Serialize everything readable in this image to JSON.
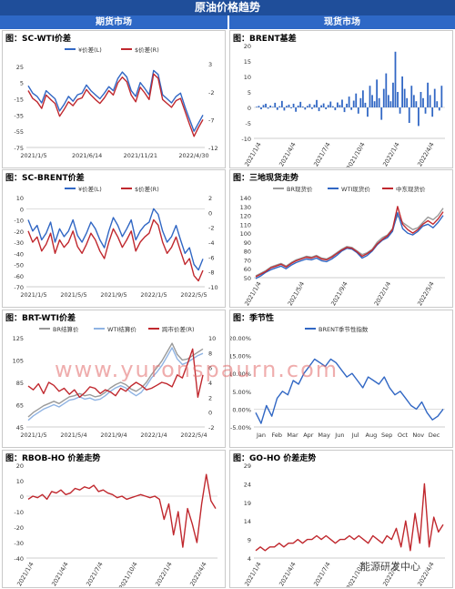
{
  "header": {
    "title": "原油价格趋势",
    "left": "期货市场",
    "right": "现货市场"
  },
  "watermark": "www.yuronspaurn.com",
  "brand": "能源研发中心",
  "chart_data": [
    {
      "id": "c1",
      "type": "line",
      "title": "图：SC-WTI价差",
      "xticks": [
        "2021/1/5",
        "2021/6/14",
        "2021/11/21",
        "2022/4/30"
      ],
      "ylim": [
        -75,
        35
      ],
      "yticks": [
        25,
        5,
        -15,
        -35,
        -55,
        -75
      ],
      "y2lim": [
        -12,
        4
      ],
      "y2ticks": [
        3,
        -2,
        -7,
        -12
      ],
      "legend": [
        "¥价差(L)",
        "$价差(R)"
      ],
      "series": [
        {
          "name": "¥价差(L)",
          "axis": "left",
          "color": "#3167c4",
          "values": [
            1,
            -8,
            -12,
            -20,
            -5,
            -10,
            -15,
            -30,
            -22,
            -12,
            -18,
            -10,
            -8,
            2,
            -5,
            -10,
            -15,
            -8,
            0,
            -5,
            10,
            18,
            12,
            -5,
            -12,
            5,
            -2,
            -10,
            20,
            15,
            -10,
            -15,
            -20,
            -12,
            -8,
            -25,
            -40,
            -55,
            -45,
            -35
          ]
        },
        {
          "name": "$价差(R)",
          "axis": "right",
          "color": "#c0282e",
          "values": [
            -1.8,
            -3.2,
            -3.8,
            -5,
            -2.6,
            -3.4,
            -4.1,
            -6.4,
            -5.2,
            -3.8,
            -4.5,
            -3.4,
            -3.1,
            -1.6,
            -2.6,
            -3.4,
            -4.1,
            -3.1,
            -1.8,
            -2.6,
            -0.4,
            0.6,
            -0.2,
            -2.6,
            -3.8,
            -1.2,
            -2.2,
            -3.4,
            1.2,
            0.4,
            -3.4,
            -4.1,
            -4.8,
            -3.6,
            -3.2,
            -5.5,
            -7.8,
            -10,
            -8.4,
            -7
          ]
        }
      ]
    },
    {
      "id": "c2",
      "type": "bar",
      "title": "图：BRENT基差",
      "xticks": [
        "2021/1/4",
        "2021/4/4",
        "2021/7/4",
        "2021/10/4",
        "2022/1/4",
        "2022/4/4"
      ],
      "ylim": [
        -10,
        20
      ],
      "yticks": [
        20,
        15,
        10,
        5,
        0,
        -5,
        -10
      ],
      "series": [
        {
          "name": "",
          "color": "#3167c4",
          "values": [
            0.2,
            0.5,
            -0.6,
            0.8,
            1.2,
            -0.4,
            0.6,
            0.2,
            1.5,
            -0.8,
            0.4,
            2.1,
            -1,
            0.5,
            0.9,
            -0.3,
            1.2,
            -1.4,
            0.6,
            1.8,
            0.3,
            -0.7,
            0.5,
            1.1,
            -0.5,
            0.9,
            2.4,
            -1.2,
            0.7,
            1.3,
            -0.6,
            0.8,
            1.9,
            0.4,
            -0.9,
            1.6,
            0.8,
            2.5,
            -1.5,
            1.2,
            3.5,
            -0.8,
            2.2,
            4.5,
            -2,
            3,
            5.5,
            1.5,
            -3,
            7,
            4,
            2,
            9,
            3,
            -4,
            6,
            11,
            4,
            2,
            8,
            18,
            5,
            -2,
            10,
            6,
            3,
            -5,
            7,
            4,
            2,
            -6,
            5,
            3,
            -2,
            8,
            4,
            -3,
            6,
            2,
            -1,
            7
          ]
        }
      ]
    },
    {
      "id": "c3",
      "type": "line",
      "title": "图：SC-BRENT价差",
      "xticks": [
        "2021/1/5",
        "2021/5/5",
        "2021/9/5",
        "2022/1/5",
        "2022/5/5"
      ],
      "ylim": [
        -70,
        10
      ],
      "yticks": [
        10,
        0,
        -10,
        -20,
        -30,
        -40,
        -50,
        -60,
        -70
      ],
      "y2lim": [
        -10,
        2
      ],
      "y2ticks": [
        2,
        0,
        -2,
        -4,
        -6,
        -8,
        -10
      ],
      "legend": [
        "¥价差(L)",
        "$价差(R)"
      ],
      "series": [
        {
          "name": "¥价差(L)",
          "axis": "left",
          "color": "#3167c4",
          "values": [
            -10,
            -20,
            -15,
            -28,
            -22,
            -12,
            -30,
            -18,
            -25,
            -20,
            -10,
            -24,
            -30,
            -22,
            -12,
            -18,
            -28,
            -35,
            -20,
            -8,
            -15,
            -25,
            -18,
            -10,
            -28,
            -20,
            -15,
            -12,
            0,
            -5,
            -20,
            -30,
            -25,
            -15,
            -28,
            -40,
            -35,
            -50,
            -55,
            -45
          ]
        },
        {
          "name": "$价差(R)",
          "axis": "right",
          "color": "#c0282e",
          "values": [
            -2.5,
            -4,
            -3.3,
            -5.2,
            -4.3,
            -2.8,
            -5.5,
            -3.7,
            -4.7,
            -4,
            -2.5,
            -4.6,
            -5.5,
            -4.3,
            -2.8,
            -3.7,
            -5.2,
            -6.2,
            -4,
            -2.2,
            -3.3,
            -4.7,
            -3.7,
            -2.5,
            -5.2,
            -4,
            -3.3,
            -2.8,
            -1,
            -1.7,
            -4,
            -5.5,
            -4.7,
            -3.3,
            -5.2,
            -7,
            -6.2,
            -8.5,
            -9.2,
            -7.8
          ]
        }
      ]
    },
    {
      "id": "c4",
      "type": "line",
      "title": "图：三地现货走势",
      "xticks": [
        "2021/1/4",
        "2021/5/4",
        "2021/9/4",
        "2022/1/4",
        "2022/5/4"
      ],
      "ylim": [
        50,
        140
      ],
      "yticks": [
        140,
        130,
        120,
        110,
        100,
        90,
        80,
        70,
        60,
        50
      ],
      "legend": [
        "BR现货价",
        "WTI现货价",
        "中东现货价"
      ],
      "series": [
        {
          "name": "BR现货价",
          "color": "#9a9a9a",
          "values": [
            52,
            55,
            58,
            62,
            64,
            66,
            63,
            67,
            70,
            72,
            74,
            73,
            75,
            72,
            71,
            74,
            78,
            82,
            85,
            84,
            80,
            76,
            78,
            82,
            90,
            95,
            98,
            105,
            120,
            112,
            108,
            104,
            106,
            112,
            118,
            115,
            120,
            128
          ]
        },
        {
          "name": "WTI现货价",
          "color": "#3167c4",
          "values": [
            49,
            52,
            56,
            59,
            61,
            63,
            60,
            64,
            67,
            69,
            71,
            70,
            72,
            69,
            68,
            71,
            75,
            80,
            83,
            82,
            78,
            72,
            75,
            80,
            87,
            92,
            95,
            102,
            123,
            105,
            100,
            98,
            102,
            108,
            110,
            106,
            112,
            120
          ]
        },
        {
          "name": "中东现货价",
          "color": "#c0282e",
          "values": [
            51,
            54,
            57,
            61,
            63,
            65,
            62,
            66,
            69,
            71,
            73,
            72,
            74,
            71,
            70,
            73,
            77,
            81,
            84,
            83,
            79,
            74,
            77,
            81,
            88,
            93,
            97,
            104,
            130,
            110,
            104,
            100,
            104,
            110,
            114,
            110,
            116,
            124
          ]
        }
      ]
    },
    {
      "id": "c5",
      "type": "line",
      "title": "图：BRT-WTI价差",
      "xticks": [
        "2021/1/5",
        "2021/5/4",
        "2021/9/4",
        "2022/1/4",
        "2022/5/4"
      ],
      "ylim": [
        45,
        125
      ],
      "yticks": [
        125,
        105,
        85,
        65,
        45
      ],
      "y2lim": [
        -2,
        10
      ],
      "y2ticks": [
        10,
        8,
        6,
        4,
        2,
        0,
        -2
      ],
      "legend": [
        "BR结算价",
        "WTI结算价",
        "跨市价差(R)"
      ],
      "series": [
        {
          "name": "BR结算价",
          "axis": "left",
          "color": "#9a9a9a",
          "values": [
            54,
            58,
            61,
            64,
            66,
            68,
            66,
            69,
            72,
            73,
            75,
            73,
            74,
            72,
            73,
            76,
            80,
            83,
            85,
            83,
            79,
            77,
            80,
            85,
            92,
            98,
            104,
            112,
            120,
            110,
            105,
            106,
            109,
            112,
            115
          ]
        },
        {
          "name": "WTI结算价",
          "axis": "left",
          "color": "#8fb3e3",
          "values": [
            51,
            55,
            58,
            61,
            63,
            65,
            63,
            66,
            69,
            70,
            72,
            70,
            71,
            69,
            70,
            73,
            77,
            80,
            82,
            80,
            76,
            73,
            76,
            82,
            89,
            94,
            100,
            108,
            116,
            106,
            101,
            103,
            106,
            109,
            111
          ]
        },
        {
          "name": "跨市价差(R)",
          "axis": "right",
          "color": "#c0282e",
          "values": [
            3.5,
            3,
            3.8,
            2.5,
            4,
            3.6,
            2.8,
            3.2,
            2.4,
            3,
            2,
            2.6,
            3.4,
            3.2,
            2.5,
            3,
            2.7,
            2.2,
            3.2,
            2.8,
            3.5,
            4,
            3.6,
            3,
            3.2,
            3.6,
            4,
            3.8,
            3.4,
            5,
            4.6,
            6.5,
            8.5,
            2,
            5
          ]
        }
      ]
    },
    {
      "id": "c6",
      "type": "line",
      "title": "图：季节性",
      "xticks": [
        "Jan",
        "Feb",
        "Mar",
        "Apr",
        "May",
        "Jun",
        "Jul",
        "Aug",
        "Sep",
        "Oct",
        "Nov",
        "Dec"
      ],
      "ylim": [
        -5,
        20
      ],
      "yticks": [
        "20.00%",
        "15.00%",
        "10.00%",
        "5.00%",
        "0.00%",
        "-5.00%"
      ],
      "legend": [
        "BRENT季节性指数"
      ],
      "series": [
        {
          "name": "BRENT季节性指数",
          "color": "#3167c4",
          "values": [
            -1,
            -4,
            1,
            -2,
            3,
            5,
            4,
            8,
            7,
            10,
            12,
            14,
            13,
            12,
            14,
            13,
            11,
            9,
            10,
            8,
            6,
            9,
            8,
            7,
            9,
            6,
            4,
            5,
            3,
            1,
            0,
            2,
            -1,
            -3,
            -2,
            0
          ]
        }
      ]
    },
    {
      "id": "c7",
      "type": "line",
      "title": "图：RBOB-HO 价差走势",
      "xticks": [
        "2021/1/4",
        "2021/4/4",
        "2021/7/4",
        "2021/10/4",
        "2022/1/4",
        "2022/4/4"
      ],
      "ylim": [
        -40,
        20
      ],
      "yticks": [
        20,
        10,
        0,
        -10,
        -20,
        -30,
        -40
      ],
      "series": [
        {
          "name": "",
          "color": "#c0282e",
          "values": [
            -2,
            0,
            -1,
            1,
            -2,
            3,
            2,
            4,
            1,
            2,
            5,
            4,
            6,
            5,
            7,
            3,
            4,
            2,
            1,
            -1,
            0,
            -2,
            -1,
            0,
            1,
            0,
            -1,
            0,
            -2,
            -15,
            -5,
            -25,
            -10,
            -33,
            -8,
            -18,
            -30,
            -5,
            14,
            -3,
            -8
          ]
        }
      ]
    },
    {
      "id": "c8",
      "type": "line",
      "title": "图：GO-HO 价差走势",
      "xticks": [
        "2021/1/4",
        "2021/4/4",
        "2021/7/4",
        "2021/10/4",
        "2022/1/4",
        "2022/4/4"
      ],
      "ylim": [
        4,
        29
      ],
      "yticks": [
        29,
        24,
        19,
        14,
        9,
        4
      ],
      "series": [
        {
          "name": "",
          "color": "#c0282e",
          "values": [
            6,
            7,
            6,
            7,
            7,
            8,
            7,
            8,
            8,
            9,
            8,
            9,
            9,
            10,
            9,
            10,
            9,
            8,
            9,
            9,
            10,
            9,
            10,
            9,
            8,
            10,
            9,
            8,
            10,
            9,
            12,
            7,
            14,
            6,
            16,
            8,
            24,
            7,
            15,
            11,
            13
          ]
        }
      ]
    }
  ]
}
